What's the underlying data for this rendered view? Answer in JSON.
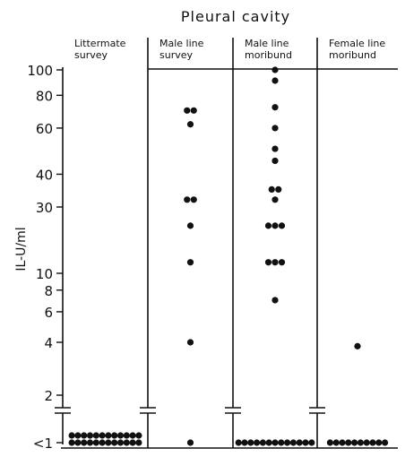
{
  "chart_data": {
    "type": "scatter",
    "title": "Pleural cavity",
    "ylabel": "IL-U/ml",
    "y_scale": "log",
    "y_ticks": [
      "100",
      "80",
      "60",
      "40",
      "30",
      "10",
      "8",
      "6",
      "4",
      "2",
      "<1"
    ],
    "grid": false,
    "categories": [
      "Littermate survey",
      "Male line survey",
      "Male line moribund",
      "Female line moribund"
    ],
    "category_lines": [
      [
        "Littermate",
        "survey"
      ],
      [
        "Male line",
        "survey"
      ],
      [
        "Male line",
        "moribund"
      ],
      [
        "Female line",
        "moribund"
      ]
    ],
    "series": [
      {
        "category": "Littermate survey",
        "values": [],
        "below_detection_count": 24
      },
      {
        "category": "Male line survey",
        "values": [
          70,
          70,
          62,
          32,
          32,
          22,
          12,
          4
        ],
        "below_detection_count": 1
      },
      {
        "category": "Male line moribund",
        "values": [
          100,
          91,
          72,
          60,
          50,
          45,
          35,
          35,
          32,
          22,
          22,
          22,
          12,
          12,
          12,
          7
        ],
        "below_detection_count": 13
      },
      {
        "category": "Female line moribund",
        "values": [
          3.8
        ],
        "below_detection_count": 10
      }
    ]
  }
}
